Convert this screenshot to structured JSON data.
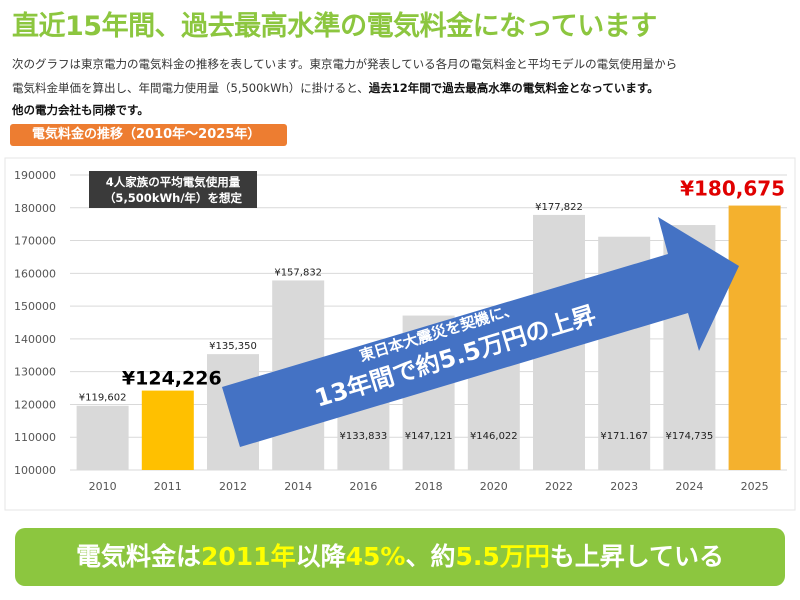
{
  "title": "直近15年間、過去最高水準の電気料金になっています",
  "description": {
    "line1": "次のグラフは東京電力の電気料金の推移を表しています。東京電力が発表している各月の電気料金と平均モデルの電気使用量から",
    "line2_normal": "電気料金単価を算出し、年間電力使用量（5,500kWh）に掛けると、",
    "line2_bold": "過去12年間で過去最高水準の電気料金となっています。",
    "line3_bold": "他の電力会社も同様です。"
  },
  "section_label": "電気料金の推移（2010年～2025年）",
  "chart_data": {
    "type": "bar",
    "categories": [
      "2010",
      "2011",
      "2012",
      "2014",
      "2016",
      "2018",
      "2020",
      "2022",
      "2023",
      "2024",
      "2025"
    ],
    "values": [
      119602,
      124226,
      135350,
      157832,
      133833,
      147121,
      146022,
      177822,
      171167,
      174735,
      180675
    ],
    "data_labels": [
      "¥119,602",
      "¥124,226",
      "¥135,350",
      "¥157,832",
      "¥133,833",
      "¥147,121",
      "¥146,022",
      "¥177,822",
      "¥171.167",
      "¥174,735",
      "¥180,675"
    ],
    "ylim": [
      100000,
      190000
    ],
    "yticks": [
      100000,
      110000,
      120000,
      130000,
      140000,
      150000,
      160000,
      170000,
      180000,
      190000
    ],
    "grid": true,
    "colors": {
      "default": "#d9d9d9",
      "highlight_2011": "#ffc000",
      "highlight_2025": "#f4b12e",
      "label_2025": "#e00000",
      "arrow": "#4472c4"
    },
    "annotation_box": {
      "line1": "4人家族の平均電気使用量",
      "line2": "（5,500kWh/年）を想定"
    },
    "arrow_text": {
      "line1": "東日本大震災を契機に、",
      "line2": "13年間で約5.5万円の上昇"
    }
  },
  "banner": {
    "p1": "電気料金は",
    "p2": "2011年",
    "p3": "以降",
    "p4": "45%",
    "p5": "、約",
    "p6": "5.5万円",
    "p7": "も上昇している"
  }
}
